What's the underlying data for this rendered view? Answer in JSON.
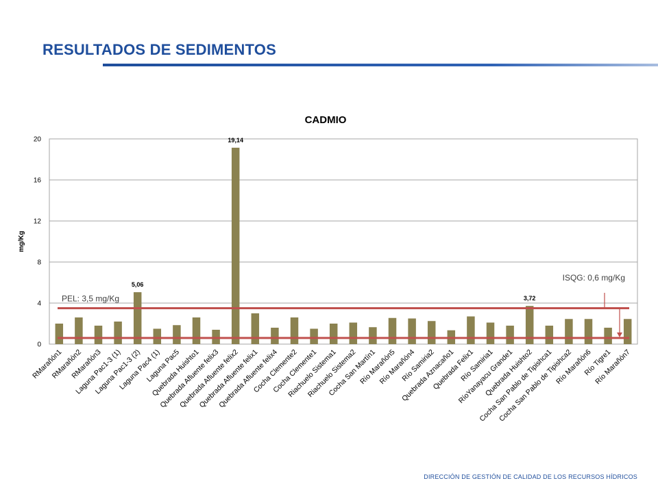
{
  "slide": {
    "title": "RESULTADOS DE SEDIMENTOS",
    "footer": "DIRECCIÓN DE GESTIÓN DE CALIDAD DE LOS RECURSOS HÍDRICOS"
  },
  "colors": {
    "bar": "#8b8250",
    "reference_line": "#c0504d",
    "title_blue": "#1f4e9c",
    "grid": "#a6a6a6"
  },
  "chart_data": {
    "type": "bar",
    "title": "CADMIO",
    "xlabel": "",
    "ylabel": "mg/Kg",
    "ylim": [
      0,
      20
    ],
    "yticks": [
      0,
      4,
      8,
      12,
      16,
      20
    ],
    "grid": true,
    "legend": "none",
    "categories": [
      "RMarañón1",
      "RMarañón2",
      "RMarañón3",
      "Laguna Pac1-3 (1)",
      "Laguna Pac1-3 (2)",
      "Laguna Pac4 (1)",
      "Laguna Pac5",
      "Quebrada Huishto1",
      "Quebrada Afluente felix3",
      "Quebrada Afluente felix2",
      "Quebrada Afluente felix1",
      "Quebrada Afluente felix4",
      "Cocha Clemente2",
      "Cocha Clemente1",
      "Riachuelo Sistema1",
      "Riachuelo Sistema2",
      "Cocha San Martín1",
      "Río Marañón5",
      "Río Marañón4",
      "Río Samiria2",
      "Quebrada Aznacaño1",
      "Quebrada Felix1",
      "Río Samiria1",
      "RíoYanayacu Grande1",
      "Quebrada Huishto2",
      "Cocha San Pablo de Tipishca1",
      "Cocha San Pablo de Tipishca2",
      "Río Marañón6",
      "Río Tigre1",
      "Río Marañón7"
    ],
    "values": [
      2.0,
      2.6,
      1.8,
      2.2,
      5.06,
      1.5,
      1.85,
      2.6,
      1.4,
      19.14,
      3.0,
      1.6,
      2.6,
      1.5,
      2.0,
      2.1,
      1.65,
      2.55,
      2.5,
      2.25,
      1.35,
      2.7,
      2.1,
      1.8,
      3.72,
      1.8,
      2.45,
      2.45,
      1.6,
      2.45
    ],
    "data_labels": [
      {
        "index": 4,
        "text": "5,06"
      },
      {
        "index": 9,
        "text": "19,14"
      },
      {
        "index": 24,
        "text": "3,72"
      }
    ],
    "reference_lines": [
      {
        "value": 3.5,
        "label": "PEL: 3,5 mg/Kg"
      },
      {
        "value": 0.6,
        "label": "ISQG: 0,6 mg/Kg"
      }
    ]
  }
}
